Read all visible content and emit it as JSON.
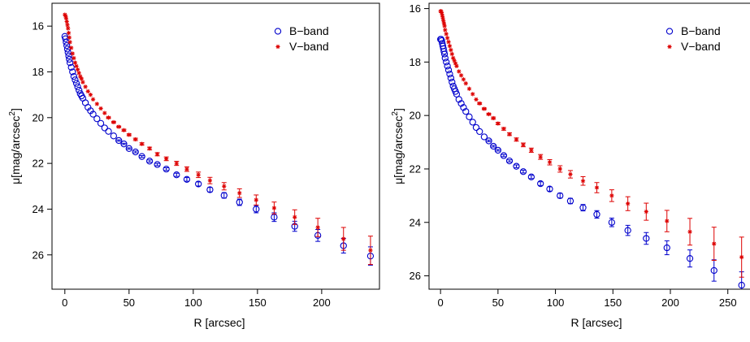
{
  "chart_data": [
    {
      "type": "scatter",
      "title": "",
      "xlabel": "R [arcsec]",
      "ylabel": "μ[mag/arcsec²]",
      "ylabel_base": "μ[mag/arcsec",
      "ylabel_sup": "2",
      "ylabel_close": "]",
      "xlim": [
        -10,
        245
      ],
      "ylim": [
        27.5,
        15.0
      ],
      "y_inverted": true,
      "x_ticks": [
        0,
        50,
        100,
        150,
        200
      ],
      "x_tick_labels": [
        "0",
        "50",
        "100",
        "150",
        "200"
      ],
      "y_ticks": [
        16,
        18,
        20,
        22,
        24,
        26
      ],
      "y_tick_labels": [
        "16",
        "18",
        "20",
        "22",
        "24",
        "26"
      ],
      "grid": false,
      "legend": "top-right",
      "series": [
        {
          "name": "B-band",
          "label": "B−band",
          "marker": "circle",
          "color": "#0000cc",
          "x": [
            0,
            0.5,
            1,
            1.5,
            2,
            2.5,
            3,
            3.5,
            4,
            5,
            6,
            7,
            8,
            9,
            10,
            11,
            12,
            13,
            14,
            16,
            18,
            20,
            22,
            25,
            28,
            31,
            34,
            38,
            42,
            46,
            50,
            55,
            60,
            66,
            72,
            79,
            87,
            95,
            104,
            113,
            124,
            136,
            149,
            163,
            179,
            197,
            217,
            238
          ],
          "y": [
            16.45,
            16.55,
            16.7,
            16.85,
            17.0,
            17.15,
            17.3,
            17.45,
            17.6,
            17.8,
            18.0,
            18.2,
            18.35,
            18.5,
            18.65,
            18.8,
            18.95,
            19.05,
            19.15,
            19.35,
            19.55,
            19.7,
            19.85,
            20.05,
            20.25,
            20.45,
            20.6,
            20.8,
            21.0,
            21.15,
            21.35,
            21.5,
            21.7,
            21.9,
            22.05,
            22.25,
            22.5,
            22.7,
            22.9,
            23.15,
            23.4,
            23.7,
            24.0,
            24.35,
            24.75,
            25.15,
            25.6,
            26.05
          ],
          "err": [
            0.01,
            0.01,
            0.01,
            0.01,
            0.01,
            0.01,
            0.01,
            0.01,
            0.01,
            0.01,
            0.01,
            0.01,
            0.01,
            0.01,
            0.01,
            0.01,
            0.01,
            0.01,
            0.01,
            0.01,
            0.01,
            0.01,
            0.01,
            0.02,
            0.02,
            0.02,
            0.02,
            0.02,
            0.03,
            0.03,
            0.03,
            0.04,
            0.04,
            0.05,
            0.05,
            0.06,
            0.07,
            0.08,
            0.09,
            0.1,
            0.12,
            0.14,
            0.16,
            0.19,
            0.22,
            0.26,
            0.32,
            0.4
          ]
        },
        {
          "name": "V-band",
          "label": "V−band",
          "marker": "star",
          "color": "#dd0000",
          "x": [
            0,
            0.5,
            1,
            1.5,
            2,
            2.5,
            3,
            3.5,
            4,
            5,
            6,
            7,
            8,
            9,
            10,
            11,
            12,
            13,
            14,
            16,
            18,
            20,
            22,
            25,
            28,
            31,
            34,
            38,
            42,
            46,
            50,
            55,
            60,
            66,
            72,
            79,
            87,
            95,
            104,
            113,
            124,
            136,
            149,
            163,
            179,
            197,
            217,
            238
          ],
          "y": [
            15.5,
            15.55,
            15.65,
            15.8,
            15.95,
            16.1,
            16.3,
            16.5,
            16.7,
            16.95,
            17.2,
            17.4,
            17.6,
            17.75,
            17.9,
            18.05,
            18.2,
            18.3,
            18.45,
            18.65,
            18.85,
            19.0,
            19.2,
            19.4,
            19.6,
            19.8,
            20.0,
            20.2,
            20.4,
            20.55,
            20.75,
            20.95,
            21.15,
            21.35,
            21.6,
            21.8,
            22.0,
            22.25,
            22.5,
            22.75,
            23.0,
            23.3,
            23.6,
            23.95,
            24.35,
            24.8,
            25.3,
            25.8
          ],
          "err": [
            0.01,
            0.01,
            0.01,
            0.01,
            0.01,
            0.01,
            0.01,
            0.01,
            0.01,
            0.01,
            0.01,
            0.01,
            0.01,
            0.01,
            0.01,
            0.01,
            0.01,
            0.01,
            0.01,
            0.01,
            0.01,
            0.01,
            0.02,
            0.02,
            0.02,
            0.02,
            0.03,
            0.03,
            0.03,
            0.04,
            0.04,
            0.05,
            0.05,
            0.06,
            0.07,
            0.08,
            0.09,
            0.1,
            0.12,
            0.14,
            0.16,
            0.19,
            0.22,
            0.26,
            0.32,
            0.4,
            0.5,
            0.62
          ]
        }
      ]
    },
    {
      "type": "scatter",
      "title": "",
      "xlabel": "R [arcsec]",
      "ylabel": "μ[mag/arcsec²]",
      "ylabel_base": "μ[mag/arcsec",
      "ylabel_sup": "2",
      "ylabel_close": "]",
      "xlim": [
        -10,
        270
      ],
      "ylim": [
        26.5,
        15.8
      ],
      "y_inverted": true,
      "x_ticks": [
        0,
        50,
        100,
        150,
        200,
        250
      ],
      "x_tick_labels": [
        "0",
        "50",
        "100",
        "150",
        "200",
        "250"
      ],
      "y_ticks": [
        16,
        18,
        20,
        22,
        24,
        26
      ],
      "y_tick_labels": [
        "16",
        "18",
        "20",
        "22",
        "24",
        "26"
      ],
      "grid": false,
      "legend": "top-right",
      "series": [
        {
          "name": "B-band",
          "label": "B−band",
          "marker": "circle",
          "color": "#0000cc",
          "x": [
            0,
            0.5,
            1,
            1.5,
            2,
            2.5,
            3,
            3.5,
            4,
            5,
            6,
            7,
            8,
            9,
            10,
            11,
            12,
            13,
            14,
            16,
            18,
            20,
            22,
            25,
            28,
            31,
            34,
            38,
            42,
            46,
            50,
            55,
            60,
            66,
            72,
            79,
            87,
            95,
            104,
            113,
            124,
            136,
            149,
            163,
            179,
            197,
            217,
            238,
            262
          ],
          "y": [
            17.15,
            17.15,
            17.2,
            17.3,
            17.4,
            17.5,
            17.6,
            17.7,
            17.85,
            18.0,
            18.15,
            18.3,
            18.45,
            18.6,
            18.75,
            18.9,
            19.0,
            19.1,
            19.2,
            19.4,
            19.55,
            19.7,
            19.85,
            20.05,
            20.25,
            20.45,
            20.6,
            20.8,
            20.95,
            21.15,
            21.3,
            21.5,
            21.7,
            21.9,
            22.1,
            22.3,
            22.55,
            22.75,
            23.0,
            23.2,
            23.45,
            23.7,
            24.0,
            24.3,
            24.6,
            24.95,
            25.35,
            25.8,
            26.35
          ],
          "err": [
            0.01,
            0.01,
            0.01,
            0.01,
            0.01,
            0.01,
            0.01,
            0.01,
            0.01,
            0.01,
            0.01,
            0.01,
            0.01,
            0.01,
            0.01,
            0.01,
            0.01,
            0.01,
            0.01,
            0.01,
            0.01,
            0.01,
            0.01,
            0.02,
            0.02,
            0.02,
            0.02,
            0.02,
            0.03,
            0.03,
            0.03,
            0.04,
            0.04,
            0.05,
            0.05,
            0.06,
            0.07,
            0.08,
            0.09,
            0.1,
            0.12,
            0.14,
            0.16,
            0.19,
            0.22,
            0.26,
            0.32,
            0.4,
            0.5
          ]
        },
        {
          "name": "V-band",
          "label": "V−band",
          "marker": "star",
          "color": "#dd0000",
          "x": [
            0,
            0.5,
            1,
            1.5,
            2,
            2.5,
            3,
            3.5,
            4,
            5,
            6,
            7,
            8,
            9,
            10,
            11,
            12,
            13,
            14,
            16,
            18,
            20,
            22,
            25,
            28,
            31,
            34,
            38,
            42,
            46,
            50,
            55,
            60,
            66,
            72,
            79,
            87,
            95,
            104,
            113,
            124,
            136,
            149,
            163,
            179,
            197,
            217,
            238,
            262
          ],
          "y": [
            16.1,
            16.1,
            16.15,
            16.25,
            16.35,
            16.45,
            16.55,
            16.65,
            16.8,
            16.95,
            17.1,
            17.25,
            17.4,
            17.55,
            17.7,
            17.85,
            17.95,
            18.05,
            18.15,
            18.35,
            18.5,
            18.65,
            18.8,
            19.0,
            19.2,
            19.4,
            19.55,
            19.75,
            19.95,
            20.1,
            20.3,
            20.5,
            20.7,
            20.9,
            21.1,
            21.3,
            21.55,
            21.75,
            22.0,
            22.2,
            22.45,
            22.7,
            23.0,
            23.3,
            23.6,
            23.95,
            24.35,
            24.8,
            25.3
          ],
          "err": [
            0.01,
            0.01,
            0.01,
            0.01,
            0.01,
            0.01,
            0.01,
            0.01,
            0.01,
            0.01,
            0.01,
            0.01,
            0.01,
            0.01,
            0.01,
            0.01,
            0.01,
            0.01,
            0.01,
            0.01,
            0.01,
            0.01,
            0.02,
            0.02,
            0.02,
            0.02,
            0.03,
            0.03,
            0.03,
            0.04,
            0.04,
            0.05,
            0.05,
            0.06,
            0.07,
            0.08,
            0.09,
            0.1,
            0.12,
            0.14,
            0.16,
            0.19,
            0.22,
            0.26,
            0.32,
            0.4,
            0.5,
            0.62,
            0.75
          ]
        }
      ]
    }
  ]
}
